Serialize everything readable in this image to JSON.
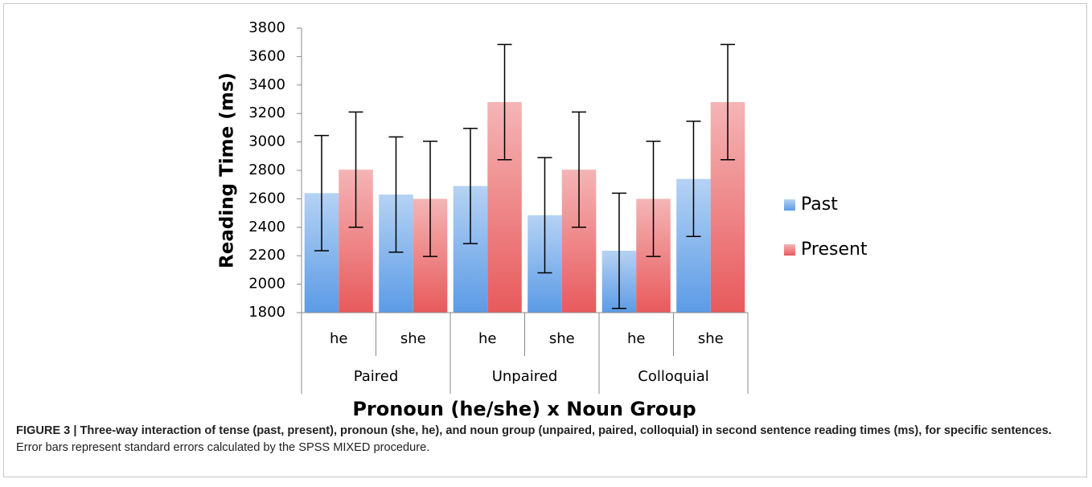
{
  "chart_data": {
    "type": "bar",
    "ylabel": "Reading Time (ms)",
    "xlabel": "Pronoun (he/she) x Noun Group",
    "categories": [
      "he",
      "she",
      "he",
      "she",
      "he",
      "she"
    ],
    "groups": [
      "Paired",
      "Unpaired",
      "Colloquial"
    ],
    "series": [
      {
        "name": "Past",
        "color": "#5b9be6",
        "values": [
          2640,
          2630,
          2690,
          2485,
          2235,
          2740
        ],
        "errors": [
          405,
          405,
          405,
          405,
          405,
          405
        ]
      },
      {
        "name": "Present",
        "color": "#e85a5c",
        "values": [
          2805,
          2600,
          3280,
          2805,
          2600,
          3280
        ],
        "errors": [
          405,
          405,
          405,
          405,
          405,
          405
        ]
      }
    ],
    "ylim": [
      1800,
      3800
    ],
    "yticks": [
      1800,
      2000,
      2200,
      2400,
      2600,
      2800,
      3000,
      3200,
      3400,
      3600,
      3800
    ],
    "legend": "right"
  },
  "caption": {
    "bold": "FIGURE 3 | Three-way interaction of tense (past, present), pronoun (she, he), and noun group (unpaired, paired, colloquial) in second sentence reading times (ms), for specific sentences.",
    "text": "Error bars represent standard errors calculated by the SPSS MIXED procedure."
  }
}
